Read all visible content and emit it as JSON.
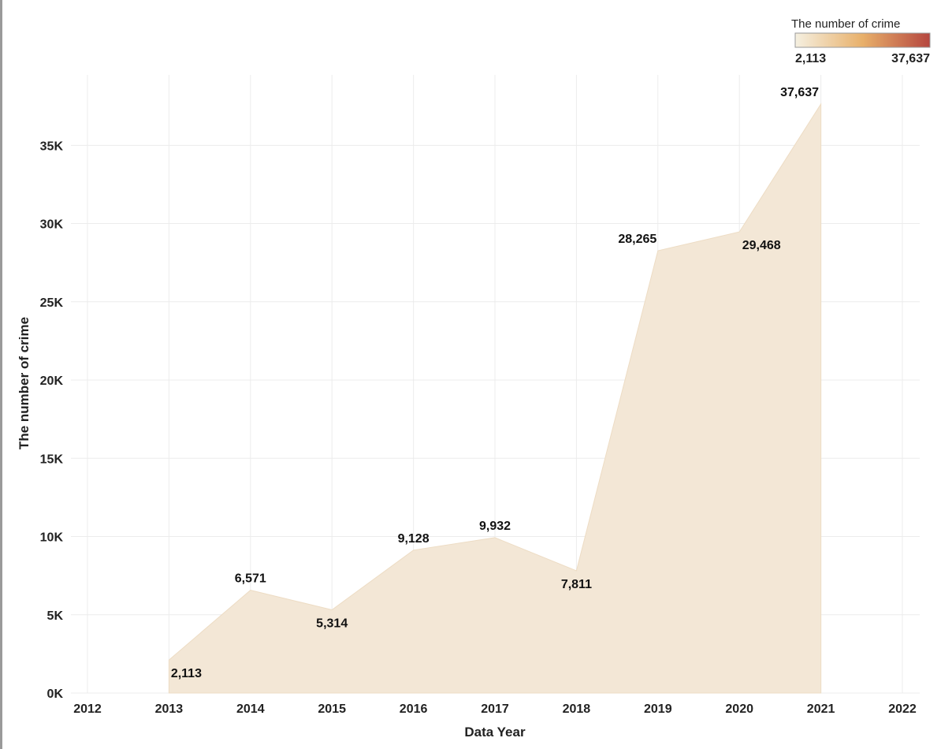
{
  "chart_data": {
    "type": "area",
    "x": [
      2013,
      2014,
      2015,
      2016,
      2017,
      2018,
      2019,
      2020,
      2021
    ],
    "values": [
      2113,
      6571,
      5314,
      9128,
      9932,
      7811,
      28265,
      29468,
      37637
    ],
    "data_labels": [
      "2,113",
      "6,571",
      "5,314",
      "9,128",
      "9,932",
      "7,811",
      "28,265",
      "29,468",
      "37,637"
    ],
    "xlabel": "Data Year",
    "ylabel": "The number of crime",
    "xlim": [
      2012,
      2022
    ],
    "x_ticks": [
      "2012",
      "2013",
      "2014",
      "2015",
      "2016",
      "2017",
      "2018",
      "2019",
      "2020",
      "2021",
      "2022"
    ],
    "ylim": [
      0,
      39500
    ],
    "y_ticks": [
      0,
      5000,
      10000,
      15000,
      20000,
      25000,
      30000,
      35000
    ],
    "y_tick_labels": [
      "0K",
      "5K",
      "10K",
      "15K",
      "20K",
      "25K",
      "30K",
      "35K"
    ],
    "grid": true,
    "area_color": "#f3e7d6",
    "legend": {
      "title": "The number of crime",
      "placement": "top-right",
      "min_label": "2,113",
      "max_label": "37,637",
      "colors": [
        "#f5f0e1",
        "#e8b06a",
        "#b5463f"
      ]
    }
  }
}
